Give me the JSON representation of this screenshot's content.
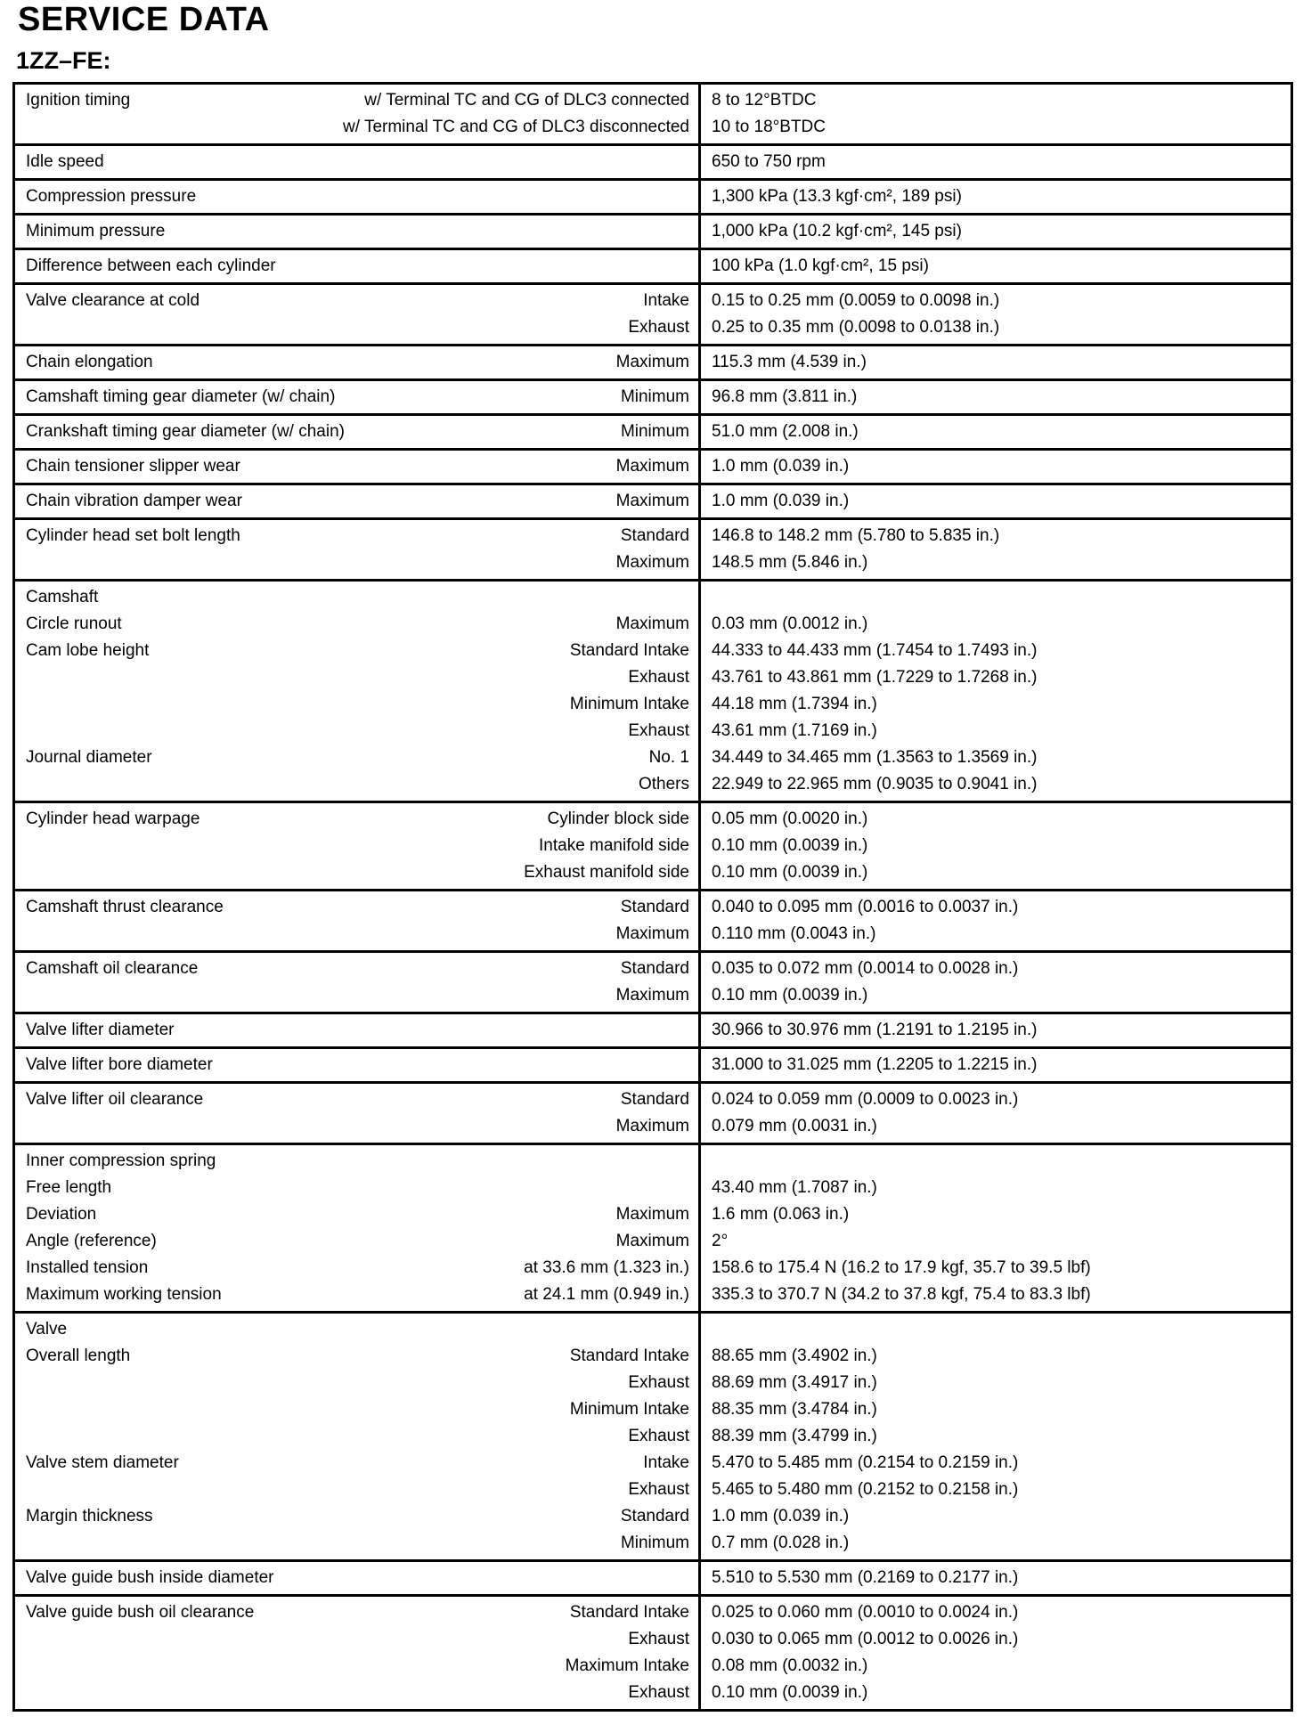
{
  "title": "SERVICE DATA",
  "engine": "1ZZ–FE:",
  "table": {
    "rows": [
      {
        "lines": [
          {
            "label": "Ignition timing",
            "condition": "w/ Terminal TC and CG of DLC3 connected",
            "value": "8 to 12°BTDC"
          },
          {
            "label": "",
            "condition": "w/ Terminal TC and CG of DLC3 disconnected",
            "value": "10 to 18°BTDC"
          }
        ]
      },
      {
        "lines": [
          {
            "label": "Idle speed",
            "condition": "",
            "value": "650 to 750 rpm"
          }
        ]
      },
      {
        "lines": [
          {
            "label": "Compression pressure",
            "condition": "",
            "value": "1,300 kPa (13.3 kgf·cm², 189 psi)"
          }
        ]
      },
      {
        "lines": [
          {
            "label": "Minimum pressure",
            "condition": "",
            "value": "1,000 kPa (10.2 kgf·cm², 145 psi)"
          }
        ]
      },
      {
        "lines": [
          {
            "label": "Difference between each cylinder",
            "condition": "",
            "value": "100 kPa (1.0 kgf·cm², 15 psi)"
          }
        ]
      },
      {
        "lines": [
          {
            "label": "Valve clearance at cold",
            "condition": "Intake",
            "value": "0.15 to 0.25 mm (0.0059 to 0.0098 in.)"
          },
          {
            "label": "",
            "condition": "Exhaust",
            "value": "0.25 to 0.35 mm (0.0098 to 0.0138 in.)"
          }
        ]
      },
      {
        "lines": [
          {
            "label": "Chain elongation",
            "condition": "Maximum",
            "value": "115.3 mm (4.539 in.)"
          }
        ]
      },
      {
        "lines": [
          {
            "label": "Camshaft timing gear diameter (w/ chain)",
            "condition": "Minimum",
            "value": "96.8 mm (3.811 in.)"
          }
        ]
      },
      {
        "lines": [
          {
            "label": "Crankshaft timing gear diameter (w/ chain)",
            "condition": "Minimum",
            "value": "51.0 mm (2.008 in.)"
          }
        ]
      },
      {
        "lines": [
          {
            "label": "Chain tensioner slipper wear",
            "condition": "Maximum",
            "value": "1.0 mm (0.039 in.)"
          }
        ]
      },
      {
        "lines": [
          {
            "label": "Chain vibration damper wear",
            "condition": "Maximum",
            "value": "1.0 mm (0.039 in.)"
          }
        ]
      },
      {
        "lines": [
          {
            "label": "Cylinder head set bolt length",
            "condition": "Standard",
            "value": "146.8 to 148.2 mm (5.780 to 5.835 in.)"
          },
          {
            "label": "",
            "condition": "Maximum",
            "value": "148.5 mm (5.846 in.)"
          }
        ]
      },
      {
        "lines": [
          {
            "label": "Camshaft",
            "condition": "",
            "value": ""
          },
          {
            "label": "Circle runout",
            "condition": "Maximum",
            "value": "0.03 mm (0.0012 in.)"
          },
          {
            "label": "Cam lobe height",
            "condition": "Standard Intake",
            "value": "44.333 to 44.433 mm (1.7454 to 1.7493 in.)"
          },
          {
            "label": "",
            "condition": "Exhaust",
            "value": "43.761 to 43.861 mm (1.7229 to 1.7268 in.)"
          },
          {
            "label": "",
            "condition": "Minimum Intake",
            "value": "44.18 mm (1.7394 in.)"
          },
          {
            "label": "",
            "condition": "Exhaust",
            "value": "43.61 mm (1.7169 in.)"
          },
          {
            "label": "Journal diameter",
            "condition": "No. 1",
            "value": "34.449 to 34.465 mm (1.3563 to 1.3569 in.)"
          },
          {
            "label": "",
            "condition": "Others",
            "value": "22.949 to 22.965 mm (0.9035 to 0.9041 in.)"
          }
        ]
      },
      {
        "lines": [
          {
            "label": "Cylinder head warpage",
            "condition": "Cylinder block side",
            "value": "0.05 mm (0.0020 in.)"
          },
          {
            "label": "",
            "condition": "Intake manifold side",
            "value": "0.10 mm (0.0039 in.)"
          },
          {
            "label": "",
            "condition": "Exhaust manifold side",
            "value": "0.10 mm (0.0039 in.)"
          }
        ]
      },
      {
        "lines": [
          {
            "label": "Camshaft thrust clearance",
            "condition": "Standard",
            "value": "0.040 to 0.095 mm (0.0016 to 0.0037 in.)"
          },
          {
            "label": "",
            "condition": "Maximum",
            "value": "0.110 mm (0.0043 in.)"
          }
        ]
      },
      {
        "lines": [
          {
            "label": "Camshaft oil clearance",
            "condition": "Standard",
            "value": "0.035 to 0.072 mm (0.0014 to 0.0028 in.)"
          },
          {
            "label": "",
            "condition": "Maximum",
            "value": "0.10 mm (0.0039 in.)"
          }
        ]
      },
      {
        "lines": [
          {
            "label": "Valve lifter diameter",
            "condition": "",
            "value": "30.966 to 30.976 mm (1.2191 to 1.2195 in.)"
          }
        ]
      },
      {
        "lines": [
          {
            "label": "Valve lifter bore diameter",
            "condition": "",
            "value": "31.000 to 31.025 mm (1.2205 to 1.2215 in.)"
          }
        ]
      },
      {
        "lines": [
          {
            "label": "Valve lifter oil clearance",
            "condition": "Standard",
            "value": "0.024 to 0.059 mm (0.0009 to 0.0023 in.)"
          },
          {
            "label": "",
            "condition": "Maximum",
            "value": "0.079 mm (0.0031 in.)"
          }
        ]
      },
      {
        "lines": [
          {
            "label": "Inner compression spring",
            "condition": "",
            "value": ""
          },
          {
            "label": "Free length",
            "condition": "",
            "value": "43.40 mm (1.7087 in.)"
          },
          {
            "label": "Deviation",
            "condition": "Maximum",
            "value": "1.6 mm (0.063 in.)"
          },
          {
            "label": "Angle (reference)",
            "condition": "Maximum",
            "value": "2°"
          },
          {
            "label": "Installed tension",
            "condition": "at 33.6 mm (1.323 in.)",
            "value": "158.6 to 175.4 N (16.2 to 17.9 kgf, 35.7 to 39.5 lbf)"
          },
          {
            "label": "Maximum working tension",
            "condition": "at 24.1 mm (0.949 in.)",
            "value": "335.3 to 370.7 N (34.2 to 37.8 kgf, 75.4 to 83.3 lbf)"
          }
        ]
      },
      {
        "lines": [
          {
            "label": "Valve",
            "condition": "",
            "value": ""
          },
          {
            "label": "Overall length",
            "condition": "Standard Intake",
            "value": "88.65 mm (3.4902 in.)"
          },
          {
            "label": "",
            "condition": "Exhaust",
            "value": "88.69 mm (3.4917 in.)"
          },
          {
            "label": "",
            "condition": "Minimum Intake",
            "value": "88.35 mm (3.4784 in.)"
          },
          {
            "label": "",
            "condition": "Exhaust",
            "value": "88.39 mm (3.4799 in.)"
          },
          {
            "label": "Valve stem diameter",
            "condition": "Intake",
            "value": "5.470 to 5.485 mm (0.2154 to 0.2159 in.)"
          },
          {
            "label": "",
            "condition": "Exhaust",
            "value": "5.465 to 5.480 mm (0.2152 to 0.2158 in.)"
          },
          {
            "label": "Margin thickness",
            "condition": "Standard",
            "value": "1.0 mm (0.039 in.)"
          },
          {
            "label": "",
            "condition": "Minimum",
            "value": "0.7 mm (0.028 in.)"
          }
        ]
      },
      {
        "lines": [
          {
            "label": "Valve guide bush inside diameter",
            "condition": "",
            "value": "5.510 to 5.530 mm (0.2169 to 0.2177 in.)"
          }
        ]
      },
      {
        "lines": [
          {
            "label": "Valve guide bush oil clearance",
            "condition": "Standard Intake",
            "value": "0.025 to 0.060 mm (0.0010 to 0.0024 in.)"
          },
          {
            "label": "",
            "condition": "Exhaust",
            "value": "0.030 to 0.065 mm (0.0012 to 0.0026 in.)"
          },
          {
            "label": "",
            "condition": "Maximum Intake",
            "value": "0.08 mm (0.0032 in.)"
          },
          {
            "label": "",
            "condition": "Exhaust",
            "value": "0.10 mm (0.0039 in.)"
          }
        ]
      }
    ]
  }
}
